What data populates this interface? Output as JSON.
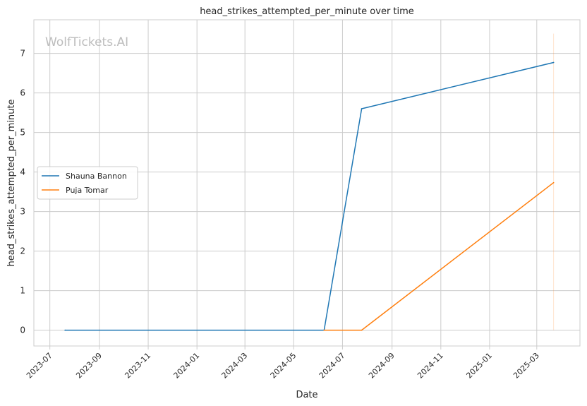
{
  "watermark": "WolfTickets.AI",
  "chart_data": {
    "type": "line",
    "title": "head_strikes_attempted_per_minute over time",
    "xlabel": "Date",
    "ylabel": "head_strikes_attempted_per_minute",
    "x_ticks": [
      "2023-07",
      "2023-09",
      "2023-11",
      "2024-01",
      "2024-03",
      "2024-05",
      "2024-07",
      "2024-09",
      "2024-11",
      "2025-01",
      "2025-03"
    ],
    "y_ticks": [
      "0",
      "1",
      "2",
      "3",
      "4",
      "5",
      "6",
      "7"
    ],
    "ylim": [
      -0.4,
      7.85
    ],
    "xlim": [
      "2023-06-11",
      "2025-04-24"
    ],
    "grid": true,
    "legend_position": "center-left",
    "series": [
      {
        "name": "Shauna Bannon",
        "color": "#1f77b4",
        "points": [
          {
            "x": "2023-07-20",
            "y": 0
          },
          {
            "x": "2024-06-08",
            "y": 0
          },
          {
            "x": "2024-07-25",
            "y": 5.6
          },
          {
            "x": "2025-03-22",
            "y": 6.77
          }
        ]
      },
      {
        "name": "Puja Tomar",
        "color": "#ff7f0e",
        "points": [
          {
            "x": "2024-06-08",
            "y": 0
          },
          {
            "x": "2024-07-25",
            "y": 0
          },
          {
            "x": "2025-03-22",
            "y": 3.73
          }
        ]
      }
    ],
    "annotation_vline": {
      "x": "2025-03-22",
      "y_from": 0,
      "y_to": 7.5,
      "color": "#ff7f0e"
    }
  }
}
